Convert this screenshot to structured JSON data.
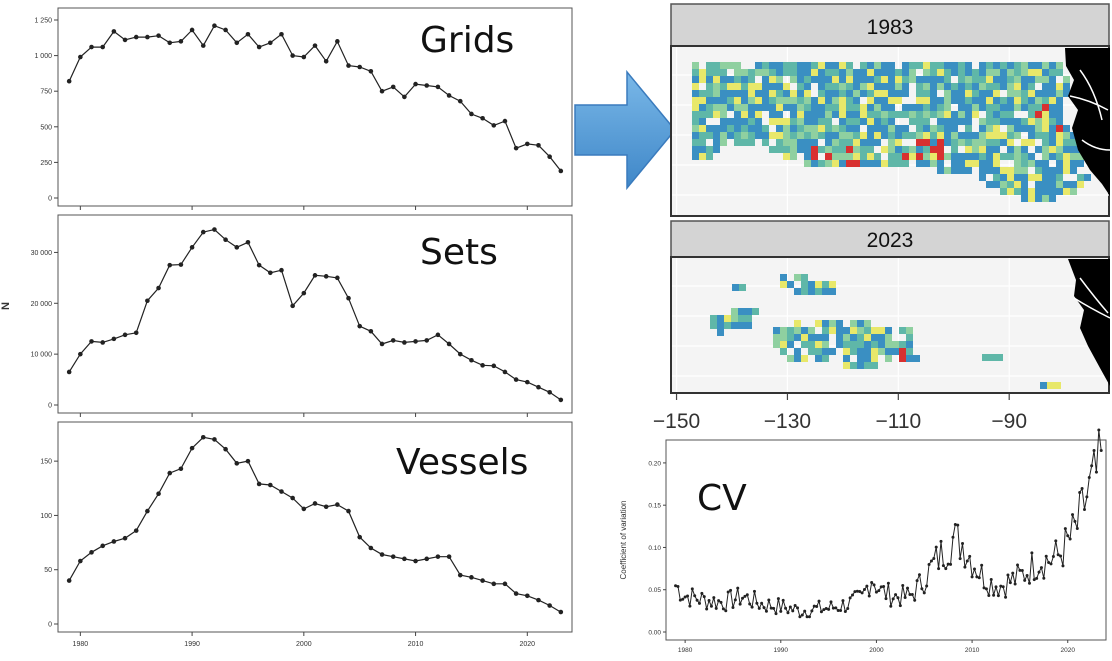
{
  "labels": {
    "grids": "Grids",
    "sets": "Sets",
    "vessels": "Vessels",
    "cv": "CV",
    "shared_ylabel": "N",
    "cv_ylabel": "Coefficient of variation"
  },
  "colors": {
    "arrow": "#5aa0d8",
    "arrow_edge": "#3a7bbd",
    "line": "#222222",
    "map_land": "#000000",
    "map_blue": "#3a8fc2",
    "map_teal": "#5fb7a8",
    "map_yellow": "#e8e86a",
    "map_red": "#d83030",
    "strip": "#d4d4d4"
  },
  "chart_data": [
    {
      "type": "line",
      "id": "grids",
      "x": [
        1979,
        1980,
        1981,
        1982,
        1983,
        1984,
        1985,
        1986,
        1987,
        1988,
        1989,
        1990,
        1991,
        1992,
        1993,
        1994,
        1995,
        1996,
        1997,
        1998,
        1999,
        2000,
        2001,
        2002,
        2003,
        2004,
        2005,
        2006,
        2007,
        2008,
        2009,
        2010,
        2011,
        2012,
        2013,
        2014,
        2015,
        2016,
        2017,
        2018,
        2019,
        2020,
        2021,
        2022,
        2023
      ],
      "values": [
        820,
        990,
        1060,
        1060,
        1170,
        1110,
        1130,
        1130,
        1140,
        1090,
        1100,
        1180,
        1070,
        1210,
        1180,
        1090,
        1150,
        1060,
        1090,
        1150,
        1000,
        990,
        1070,
        960,
        1100,
        930,
        920,
        890,
        750,
        780,
        710,
        800,
        790,
        780,
        720,
        680,
        590,
        560,
        510,
        540,
        350,
        380,
        370,
        290,
        190
      ],
      "ylim": [
        0,
        1250
      ],
      "yticks": [
        0,
        250,
        500,
        750,
        1000,
        1250
      ],
      "ytick_labels": [
        "0",
        "250",
        "500",
        "750",
        "1 000",
        "1 250"
      ],
      "xlim": [
        1978,
        2024
      ]
    },
    {
      "type": "line",
      "id": "sets",
      "x": [
        1979,
        1980,
        1981,
        1982,
        1983,
        1984,
        1985,
        1986,
        1987,
        1988,
        1989,
        1990,
        1991,
        1992,
        1993,
        1994,
        1995,
        1996,
        1997,
        1998,
        1999,
        2000,
        2001,
        2002,
        2003,
        2004,
        2005,
        2006,
        2007,
        2008,
        2009,
        2010,
        2011,
        2012,
        2013,
        2014,
        2015,
        2016,
        2017,
        2018,
        2019,
        2020,
        2021,
        2022,
        2023
      ],
      "values": [
        6500,
        10000,
        12500,
        12300,
        13000,
        13800,
        14200,
        20500,
        23000,
        27500,
        27600,
        31000,
        34000,
        34500,
        32500,
        31000,
        32000,
        27500,
        26000,
        26500,
        19500,
        22000,
        25500,
        25300,
        25000,
        21000,
        15500,
        14500,
        12000,
        12700,
        12300,
        12500,
        12700,
        13800,
        12000,
        10000,
        8800,
        7800,
        7700,
        6500,
        5000,
        4500,
        3500,
        2500,
        1000
      ],
      "ylim": [
        0,
        35000
      ],
      "yticks": [
        0,
        10000,
        20000,
        30000
      ],
      "ytick_labels": [
        "0",
        "10 000",
        "20 000",
        "30 000"
      ],
      "xlim": [
        1978,
        2024
      ]
    },
    {
      "type": "line",
      "id": "vessels",
      "x": [
        1979,
        1980,
        1981,
        1982,
        1983,
        1984,
        1985,
        1986,
        1987,
        1988,
        1989,
        1990,
        1991,
        1992,
        1993,
        1994,
        1995,
        1996,
        1997,
        1998,
        1999,
        2000,
        2001,
        2002,
        2003,
        2004,
        2005,
        2006,
        2007,
        2008,
        2009,
        2010,
        2011,
        2012,
        2013,
        2014,
        2015,
        2016,
        2017,
        2018,
        2019,
        2020,
        2021,
        2022,
        2023
      ],
      "values": [
        40,
        58,
        66,
        72,
        76,
        79,
        86,
        104,
        120,
        139,
        143,
        162,
        172,
        170,
        161,
        148,
        150,
        129,
        128,
        122,
        116,
        106,
        111,
        108,
        110,
        104,
        80,
        70,
        64,
        62,
        60,
        58,
        60,
        62,
        62,
        45,
        43,
        40,
        37,
        37,
        28,
        26,
        22,
        17,
        11
      ],
      "ylim": [
        0,
        175
      ],
      "yticks": [
        0,
        50,
        100,
        150
      ],
      "ytick_labels": [
        "0",
        "50",
        "100",
        "150"
      ],
      "xlim": [
        1978,
        2024
      ],
      "xticks": [
        1980,
        1990,
        2000,
        2010,
        2020
      ],
      "xtick_labels": [
        "1980",
        "1990",
        "2000",
        "2010",
        "2020"
      ]
    },
    {
      "type": "heatmap",
      "id": "map",
      "panels": [
        "1983",
        "2023"
      ],
      "xtick_labels": [
        "−150",
        "−130",
        "−110",
        "−90"
      ],
      "xticks": [
        -150,
        -130,
        -110,
        -90
      ],
      "xlim": [
        -151,
        -72
      ]
    },
    {
      "type": "line",
      "id": "cv",
      "ylim": [
        0,
        0.22
      ],
      "yticks": [
        0,
        0.05,
        0.1,
        0.15,
        0.2
      ],
      "ytick_labels": [
        "0.00",
        "0.05",
        "0.10",
        "0.15",
        "0.20"
      ],
      "xlim": [
        1978,
        2024
      ],
      "xticks": [
        1980,
        1990,
        2000,
        2010,
        2020
      ],
      "xtick_labels": [
        "1980",
        "1990",
        "2000",
        "2010",
        "2020"
      ],
      "anchors": [
        [
          1979.0,
          0.055
        ],
        [
          1980.0,
          0.043
        ],
        [
          1982.0,
          0.038
        ],
        [
          1984.0,
          0.035
        ],
        [
          1986.0,
          0.042
        ],
        [
          1988.0,
          0.033
        ],
        [
          1990.0,
          0.03
        ],
        [
          1992.0,
          0.025
        ],
        [
          1993.5,
          0.027
        ],
        [
          1995.0,
          0.028
        ],
        [
          1997.0,
          0.033
        ],
        [
          1998.5,
          0.04
        ],
        [
          1999.5,
          0.065
        ],
        [
          2000.5,
          0.048
        ],
        [
          2002.0,
          0.042
        ],
        [
          2003.5,
          0.042
        ],
        [
          2004.5,
          0.055
        ],
        [
          2006.0,
          0.08
        ],
        [
          2007.0,
          0.095
        ],
        [
          2008.0,
          0.11
        ],
        [
          2009.0,
          0.105
        ],
        [
          2010.0,
          0.085
        ],
        [
          2011.0,
          0.068
        ],
        [
          2012.0,
          0.058
        ],
        [
          2013.0,
          0.055
        ],
        [
          2014.0,
          0.06
        ],
        [
          2015.0,
          0.065
        ],
        [
          2016.0,
          0.075
        ],
        [
          2017.0,
          0.085
        ],
        [
          2018.0,
          0.085
        ],
        [
          2019.0,
          0.09
        ],
        [
          2020.0,
          0.105
        ],
        [
          2021.0,
          0.125
        ],
        [
          2022.0,
          0.16
        ],
        [
          2023.0,
          0.185
        ],
        [
          2023.6,
          0.205
        ]
      ]
    }
  ]
}
